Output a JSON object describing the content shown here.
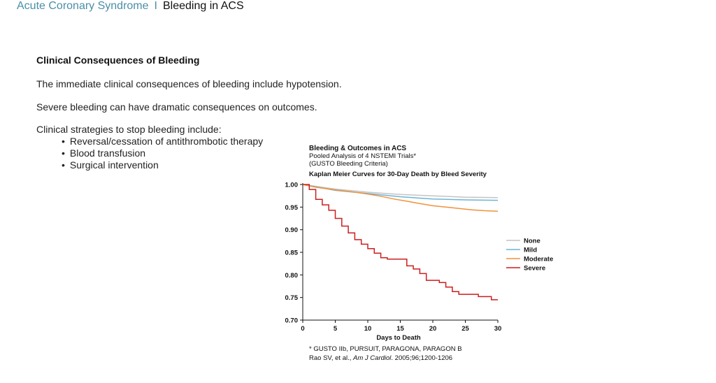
{
  "header": {
    "topic": "Acute Coronary Syndrome",
    "separator": "I",
    "subtitle": "Bleeding in ACS"
  },
  "content": {
    "title": "Clinical Consequences of Bleeding",
    "paragraphs": [
      "The immediate clinical consequences of bleeding include hypotension.",
      "Severe bleeding can have dramatic consequences on outcomes.",
      "Clinical strategies to stop bleeding include:"
    ],
    "bullets": [
      "Reversal/cessation of antithrombotic therapy",
      "Blood transfusion",
      "Surgical intervention"
    ]
  },
  "chart_data": {
    "type": "line",
    "title": "Bleeding & Outcomes in ACS",
    "subtitle_lines": [
      "Pooled Analysis of 4 NSTEMI Trials*",
      "(GUSTO Bleeding Criteria)"
    ],
    "chart_title": "Kaplan Meier Curves for 30-Day Death by Bleed Severity",
    "xlabel": "Days to Death",
    "ylabel": "",
    "xlim": [
      0,
      30
    ],
    "ylim": [
      0.7,
      1.0
    ],
    "x_ticks": [
      0,
      5,
      10,
      15,
      20,
      25,
      30
    ],
    "y_ticks": [
      "1.00",
      "0.95",
      "0.90",
      "0.85",
      "0.80",
      "0.75",
      "0.70"
    ],
    "grid": false,
    "legend_position": "right",
    "series": [
      {
        "name": "None",
        "color": "#c4c4c4",
        "step": false,
        "points": [
          [
            0,
            1.0
          ],
          [
            2,
            0.996
          ],
          [
            5,
            0.99
          ],
          [
            10,
            0.983
          ],
          [
            15,
            0.978
          ],
          [
            20,
            0.975
          ],
          [
            25,
            0.972
          ],
          [
            30,
            0.971
          ]
        ]
      },
      {
        "name": "Mild",
        "color": "#6cb4d6",
        "step": false,
        "points": [
          [
            0,
            1.0
          ],
          [
            2,
            0.995
          ],
          [
            5,
            0.987
          ],
          [
            10,
            0.98
          ],
          [
            15,
            0.973
          ],
          [
            20,
            0.968
          ],
          [
            25,
            0.966
          ],
          [
            30,
            0.965
          ]
        ]
      },
      {
        "name": "Moderate",
        "color": "#f0923a",
        "step": false,
        "points": [
          [
            0,
            1.0
          ],
          [
            2,
            0.994
          ],
          [
            5,
            0.988
          ],
          [
            8,
            0.983
          ],
          [
            10,
            0.979
          ],
          [
            12,
            0.974
          ],
          [
            14,
            0.968
          ],
          [
            16,
            0.963
          ],
          [
            18,
            0.958
          ],
          [
            20,
            0.953
          ],
          [
            22,
            0.95
          ],
          [
            24,
            0.947
          ],
          [
            26,
            0.944
          ],
          [
            28,
            0.942
          ],
          [
            30,
            0.941
          ]
        ]
      },
      {
        "name": "Severe",
        "color": "#cc1f1f",
        "step": true,
        "points": [
          [
            0,
            1.0
          ],
          [
            1,
            0.989
          ],
          [
            2,
            0.967
          ],
          [
            3,
            0.955
          ],
          [
            4,
            0.943
          ],
          [
            5,
            0.925
          ],
          [
            6,
            0.908
          ],
          [
            7,
            0.893
          ],
          [
            8,
            0.878
          ],
          [
            9,
            0.868
          ],
          [
            10,
            0.858
          ],
          [
            11,
            0.848
          ],
          [
            12,
            0.838
          ],
          [
            13,
            0.835
          ],
          [
            15,
            0.835
          ],
          [
            16,
            0.82
          ],
          [
            17,
            0.813
          ],
          [
            18,
            0.803
          ],
          [
            19,
            0.788
          ],
          [
            21,
            0.783
          ],
          [
            22,
            0.773
          ],
          [
            23,
            0.763
          ],
          [
            24,
            0.757
          ],
          [
            25,
            0.757
          ],
          [
            27,
            0.752
          ],
          [
            29,
            0.745
          ],
          [
            30,
            0.745
          ]
        ]
      }
    ],
    "footnotes": [
      "* GUSTO IIb, PURSUIT, PARAGONA, PARAGON B"
    ],
    "citation": {
      "prefix": "Rao SV, et al., ",
      "journal": "Am J Cardiol",
      "suffix": ". 2005;96;1200-1206"
    }
  }
}
